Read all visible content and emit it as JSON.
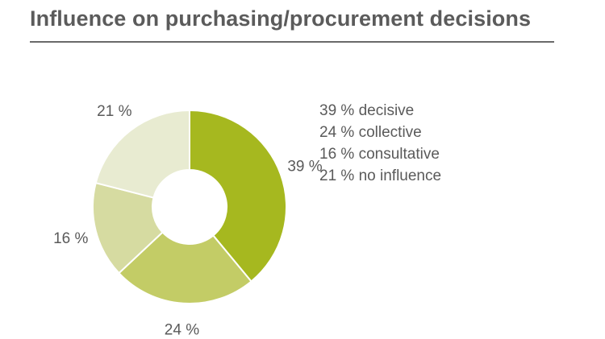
{
  "chart_data": {
    "type": "pie",
    "title": "Influence on purchasing/procurement decisions",
    "slices": [
      {
        "label": "39 %",
        "value": 39,
        "color": "#a6b81f"
      },
      {
        "label": "24 %",
        "value": 24,
        "color": "#c3cc66"
      },
      {
        "label": "16 %",
        "value": 16,
        "color": "#d6dba1"
      },
      {
        "label": "21 %",
        "value": 21,
        "color": "#e8ebd1"
      }
    ],
    "legend": [
      "39 % decisive",
      "24 % collective",
      "16 % consultative",
      "21 % no influence"
    ],
    "legend_position": "right"
  }
}
